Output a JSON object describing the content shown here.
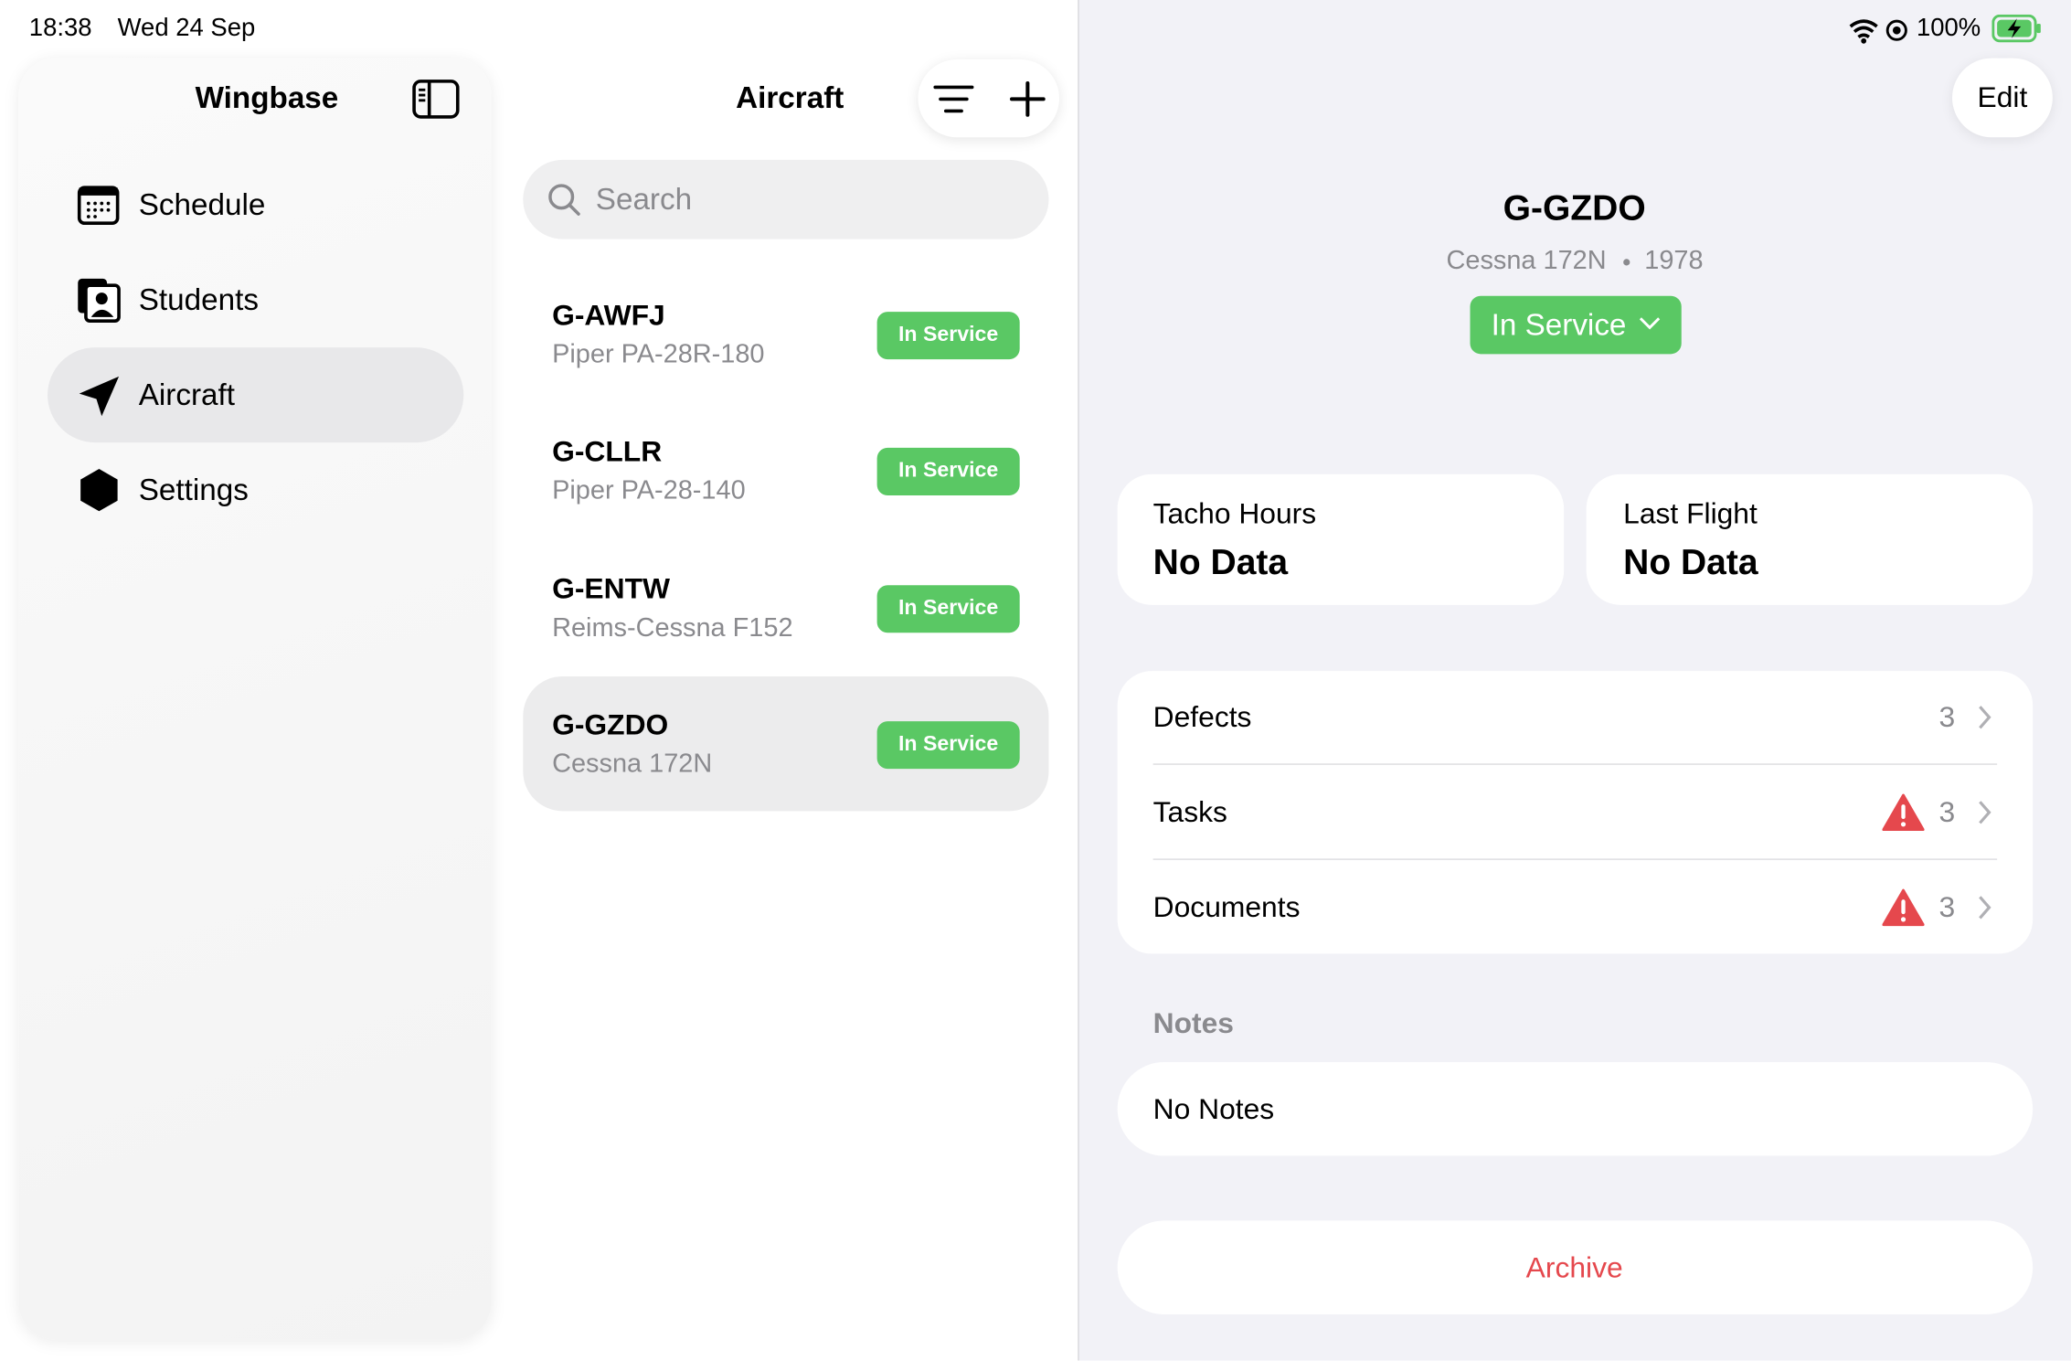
{
  "status_bar": {
    "time": "18:38",
    "date": "Wed 24 Sep",
    "battery": "100%"
  },
  "sidebar": {
    "title": "Wingbase",
    "items": [
      "Schedule",
      "Students",
      "Aircraft",
      "Settings"
    ]
  },
  "list": {
    "title": "Aircraft",
    "search_placeholder": "Search",
    "items": [
      {
        "registration": "G-AWFJ",
        "model": "Piper PA-28R-180",
        "status": "In Service"
      },
      {
        "registration": "G-CLLR",
        "model": "Piper PA-28-140",
        "status": "In Service"
      },
      {
        "registration": "G-ENTW",
        "model": "Reims-Cessna F152",
        "status": "In Service"
      },
      {
        "registration": "G-GZDO",
        "model": "Cessna 172N",
        "status": "In Service"
      }
    ]
  },
  "detail": {
    "edit": "Edit",
    "registration": "G-GZDO",
    "model": "Cessna 172N",
    "year": 1978,
    "status": "In Service",
    "stats": [
      {
        "label": "Tacho Hours",
        "value": "No Data"
      },
      {
        "label": "Last Flight",
        "value": "No Data"
      }
    ],
    "rows": [
      {
        "label": "Defects",
        "count": 3
      },
      {
        "label": "Tasks",
        "count": 3
      },
      {
        "label": "Documents",
        "count": 3
      }
    ],
    "notes_title": "Notes",
    "notes": "No Notes",
    "archive": "Archive"
  }
}
